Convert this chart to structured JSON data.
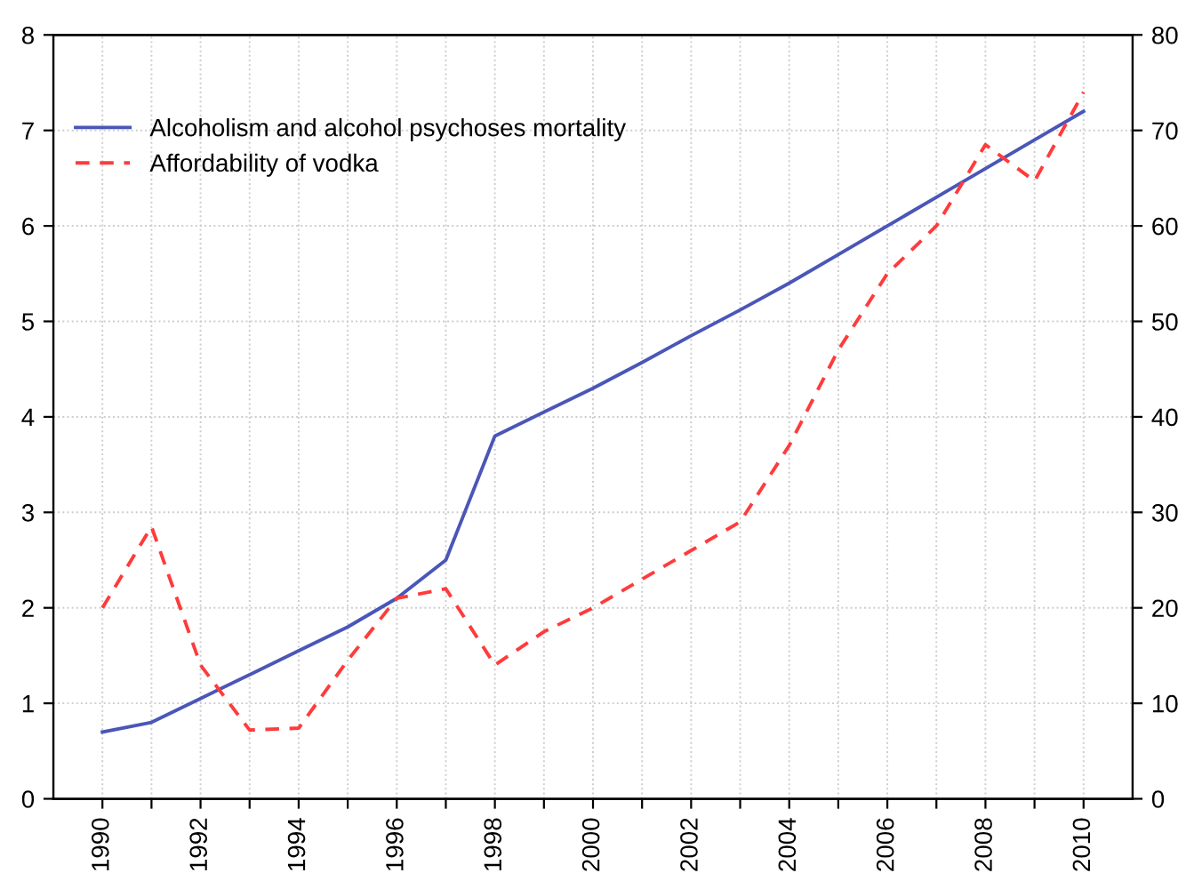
{
  "chart_data": {
    "type": "line",
    "x": [
      1990,
      1991,
      1992,
      1993,
      1994,
      1995,
      1996,
      1997,
      1998,
      1999,
      2000,
      2001,
      2002,
      2003,
      2004,
      2005,
      2006,
      2007,
      2008,
      2009,
      2010
    ],
    "series": [
      {
        "name": "Alcoholism and alcohol psychoses mortality",
        "color": "#4a56b8",
        "line_style": "solid",
        "values": [
          0.7,
          0.8,
          1.05,
          1.3,
          1.55,
          1.8,
          2.1,
          2.5,
          3.8,
          4.05,
          4.3,
          4.57,
          4.85,
          5.12,
          5.4,
          5.7,
          6.0,
          6.3,
          6.6,
          6.9,
          7.2
        ]
      },
      {
        "name": "Affordability of vodka",
        "color": "#ff3b3b",
        "line_style": "dashed",
        "axis": "y2",
        "values": [
          20,
          28.5,
          14,
          7.2,
          7.4,
          14.5,
          21,
          22,
          14,
          17.5,
          20,
          23,
          26,
          29,
          37,
          47,
          55,
          60,
          68.5,
          64.7,
          74
        ]
      }
    ],
    "xlim": [
      1989,
      2011
    ],
    "xticks": [
      1990,
      {
        "value": 1991,
        "label": null
      },
      1992,
      {
        "value": 1993,
        "label": null
      },
      1994,
      {
        "value": 1995,
        "label": null
      },
      1996,
      {
        "value": 1997,
        "label": null
      },
      1998,
      {
        "value": 1999,
        "label": null
      },
      2000,
      {
        "value": 2001,
        "label": null
      },
      2002,
      {
        "value": 2003,
        "label": null
      },
      2004,
      {
        "value": 2005,
        "label": null
      },
      2006,
      {
        "value": 2007,
        "label": null
      },
      2008,
      {
        "value": 2009,
        "label": null
      },
      2010
    ],
    "ylim": [
      0,
      8
    ],
    "yticks": [
      0,
      1,
      2,
      3,
      4,
      5,
      6,
      7,
      8
    ],
    "y2lim": [
      0,
      80
    ],
    "y2ticks": [
      0,
      10,
      20,
      30,
      40,
      50,
      60,
      70,
      80
    ],
    "grid": true,
    "legend": "top left",
    "marker": "none"
  }
}
